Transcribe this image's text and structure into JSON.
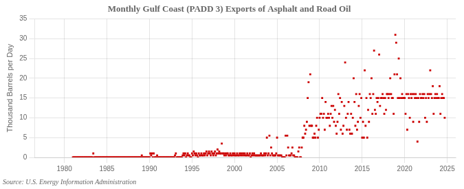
{
  "chart_data": {
    "type": "scatter",
    "title": "Monthly Gulf Coast (PADD 3) Exports of Asphalt and Road Oil",
    "y_label": "Thousand Barrels per Day",
    "annotations": [
      "Source: U.S. Energy Information Administration"
    ],
    "color": "#cc0000",
    "marker": "square",
    "grid": true,
    "xlim": [
      1976.5,
      2026
    ],
    "ylim": [
      0,
      35
    ],
    "xticks": [
      1980,
      1985,
      1990,
      1995,
      2000,
      2005,
      2010,
      2015,
      2020,
      2025
    ],
    "yticks": [
      0,
      5,
      10,
      15,
      20,
      25,
      30,
      35
    ],
    "x": [
      1981.0,
      1981.1,
      1981.2,
      1981.3,
      1981.4,
      1981.5,
      1981.6,
      1981.7,
      1981.8,
      1981.9,
      1982.0,
      1982.1,
      1982.2,
      1982.3,
      1982.4,
      1982.5,
      1982.6,
      1982.7,
      1982.8,
      1982.9,
      1983.0,
      1983.1,
      1983.2,
      1983.3,
      1983.4,
      1983.5,
      1983.6,
      1983.7,
      1983.8,
      1983.9,
      1984.0,
      1984.1,
      1984.2,
      1984.3,
      1984.4,
      1984.5,
      1984.6,
      1984.7,
      1984.8,
      1984.9,
      1985.0,
      1985.1,
      1985.2,
      1985.3,
      1985.4,
      1985.5,
      1985.6,
      1985.7,
      1985.8,
      1985.9,
      1986.0,
      1986.1,
      1986.2,
      1986.3,
      1986.4,
      1986.5,
      1986.6,
      1986.7,
      1986.8,
      1986.9,
      1987.0,
      1987.1,
      1987.2,
      1987.3,
      1987.4,
      1987.5,
      1987.6,
      1987.7,
      1987.8,
      1987.9,
      1988.0,
      1988.1,
      1988.2,
      1988.3,
      1988.4,
      1988.5,
      1988.6,
      1988.7,
      1988.8,
      1988.9,
      1989.0,
      1989.1,
      1989.2,
      1989.3,
      1989.4,
      1989.5,
      1989.6,
      1989.7,
      1989.8,
      1989.9,
      1990.0,
      1990.1,
      1990.2,
      1990.3,
      1990.4,
      1990.5,
      1990.6,
      1990.7,
      1990.8,
      1990.9,
      1991.0,
      1991.1,
      1991.2,
      1991.3,
      1991.4,
      1991.5,
      1991.6,
      1991.7,
      1991.8,
      1991.9,
      1992.0,
      1992.1,
      1992.2,
      1992.3,
      1992.4,
      1992.5,
      1992.6,
      1992.7,
      1992.8,
      1992.9,
      1993.0,
      1993.1,
      1993.2,
      1993.3,
      1993.4,
      1993.5,
      1993.6,
      1993.7,
      1993.8,
      1993.9,
      1994.0,
      1994.1,
      1994.2,
      1994.3,
      1994.4,
      1994.5,
      1994.6,
      1994.7,
      1994.8,
      1994.9,
      1995.0,
      1995.1,
      1995.2,
      1995.3,
      1995.4,
      1995.5,
      1995.6,
      1995.7,
      1995.8,
      1995.9,
      1996.0,
      1996.1,
      1996.2,
      1996.3,
      1996.4,
      1996.5,
      1996.6,
      1996.7,
      1996.8,
      1996.9,
      1997.0,
      1997.1,
      1997.2,
      1997.3,
      1997.4,
      1997.5,
      1997.6,
      1997.7,
      1997.8,
      1997.9,
      1998.0,
      1998.1,
      1998.2,
      1998.3,
      1998.4,
      1998.5,
      1998.6,
      1998.7,
      1998.8,
      1998.9,
      1999.0,
      1999.1,
      1999.2,
      1999.3,
      1999.4,
      1999.5,
      1999.6,
      1999.7,
      1999.8,
      1999.9,
      2000.0,
      2000.1,
      2000.2,
      2000.3,
      2000.4,
      2000.5,
      2000.6,
      2000.7,
      2000.8,
      2000.9,
      2001.0,
      2001.1,
      2001.2,
      2001.3,
      2001.4,
      2001.5,
      2001.6,
      2001.7,
      2001.8,
      2001.9,
      2002.0,
      2002.1,
      2002.2,
      2002.3,
      2002.4,
      2002.5,
      2002.6,
      2002.7,
      2002.8,
      2002.9,
      2003.0,
      2003.1,
      2003.2,
      2003.3,
      2003.4,
      2003.5,
      2003.6,
      2003.7,
      2003.8,
      2003.9,
      2004.0,
      2004.1,
      2004.2,
      2004.3,
      2004.4,
      2004.5,
      2004.6,
      2004.7,
      2004.8,
      2004.9,
      2005.0,
      2005.1,
      2005.2,
      2005.3,
      2005.4,
      2005.5,
      2005.6,
      2005.7,
      2005.8,
      2005.9,
      2006.0,
      2006.1,
      2006.2,
      2006.3,
      2006.4,
      2006.5,
      2006.6,
      2006.7,
      2006.8,
      2006.9,
      2007.0,
      2007.1,
      2007.2,
      2007.3,
      2007.4,
      2007.5,
      2007.6,
      2007.7,
      2007.8,
      2007.9,
      2008.0,
      2008.1,
      2008.2,
      2008.3,
      2008.4,
      2008.5,
      2008.6,
      2008.7,
      2008.8,
      2008.9,
      2009.0,
      2009.1,
      2009.2,
      2009.3,
      2009.4,
      2009.5,
      2009.6,
      2009.7,
      2009.8,
      2009.9,
      2010.0,
      2010.1,
      2010.2,
      2010.3,
      2010.4,
      2010.5,
      2010.6,
      2010.7,
      2010.8,
      2010.9,
      2011.0,
      2011.1,
      2011.2,
      2011.3,
      2011.4,
      2011.5,
      2011.6,
      2011.7,
      2011.8,
      2011.9,
      2012.0,
      2012.1,
      2012.2,
      2012.3,
      2012.4,
      2012.5,
      2012.6,
      2012.7,
      2012.8,
      2012.9,
      2013.0,
      2013.1,
      2013.2,
      2013.3,
      2013.4,
      2013.5,
      2013.6,
      2013.7,
      2013.8,
      2013.9,
      2014.0,
      2014.1,
      2014.2,
      2014.3,
      2014.4,
      2014.5,
      2014.6,
      2014.7,
      2014.8,
      2014.9,
      2015.0,
      2015.1,
      2015.2,
      2015.3,
      2015.4,
      2015.5,
      2015.6,
      2015.7,
      2015.8,
      2015.9,
      2016.0,
      2016.1,
      2016.2,
      2016.3,
      2016.4,
      2016.5,
      2016.6,
      2016.7,
      2016.8,
      2016.9,
      2017.0,
      2017.1,
      2017.2,
      2017.3,
      2017.4,
      2017.5,
      2017.6,
      2017.7,
      2017.8,
      2017.9,
      2018.0,
      2018.1,
      2018.2,
      2018.3,
      2018.4,
      2018.5,
      2018.6,
      2018.7,
      2018.8,
      2018.9,
      2019.0,
      2019.1,
      2019.2,
      2019.3,
      2019.4,
      2019.5,
      2019.6,
      2019.7,
      2019.8,
      2019.9,
      2020.0,
      2020.1,
      2020.2,
      2020.3,
      2020.4,
      2020.5,
      2020.6,
      2020.7,
      2020.8,
      2020.9,
      2021.0,
      2021.1,
      2021.2,
      2021.3,
      2021.4,
      2021.5,
      2021.6,
      2021.7,
      2021.8,
      2021.9,
      2022.0,
      2022.1,
      2022.2,
      2022.3,
      2022.4,
      2022.5,
      2022.6,
      2022.7,
      2022.8,
      2022.9,
      2023.0,
      2023.1,
      2023.2,
      2023.3,
      2023.4,
      2023.5,
      2023.6,
      2023.7,
      2023.8,
      2023.9,
      2024.0,
      2024.1,
      2024.2,
      2024.3,
      2024.4,
      2024.5,
      2024.6,
      2024.7
    ],
    "values": [
      0.0,
      0.0,
      0.0,
      0.0,
      0.0,
      0.0,
      0.0,
      0.0,
      0.0,
      0.0,
      0.0,
      0.0,
      0.0,
      0.0,
      0.0,
      0.0,
      0.0,
      0.0,
      0.0,
      0.0,
      0.0,
      0.0,
      0.0,
      0.0,
      1.0,
      0.0,
      0.0,
      0.0,
      0.0,
      0.0,
      0.0,
      0.0,
      0.0,
      0.0,
      0.0,
      0.0,
      0.0,
      0.0,
      0.0,
      0.0,
      0.0,
      0.0,
      0.0,
      0.0,
      0.0,
      0.0,
      0.0,
      0.0,
      0.0,
      0.0,
      0.0,
      0.0,
      0.0,
      0.0,
      0.0,
      0.0,
      0.0,
      0.0,
      0.0,
      0.0,
      0.0,
      0.0,
      0.0,
      0.0,
      0.0,
      0.0,
      0.0,
      0.0,
      0.0,
      0.0,
      0.0,
      0.0,
      0.0,
      0.0,
      0.0,
      0.0,
      0.0,
      0.0,
      0.0,
      0.0,
      0.0,
      0.5,
      0.0,
      0.0,
      0.0,
      0.0,
      0.0,
      0.0,
      0.0,
      0.0,
      0.0,
      1.0,
      0.5,
      1.0,
      0.0,
      1.0,
      0.0,
      0.0,
      0.0,
      0.5,
      0.0,
      0.0,
      0.0,
      0.0,
      0.0,
      0.0,
      0.0,
      0.0,
      0.0,
      0.0,
      0.0,
      0.0,
      0.0,
      0.0,
      0.0,
      0.0,
      0.0,
      0.0,
      0.0,
      0.0,
      0.5,
      1.0,
      0.0,
      0.0,
      0.0,
      0.0,
      0.0,
      0.0,
      0.0,
      0.5,
      1.0,
      0.5,
      1.0,
      0.0,
      0.5,
      1.0,
      0.5,
      0.5,
      0.0,
      0.0,
      1.0,
      0.5,
      1.5,
      1.0,
      0.5,
      1.0,
      0.5,
      0.0,
      1.0,
      0.5,
      0.5,
      1.0,
      0.5,
      0.5,
      1.0,
      0.5,
      1.0,
      1.5,
      0.5,
      1.0,
      1.5,
      1.0,
      0.5,
      1.5,
      1.0,
      0.5,
      1.0,
      1.5,
      0.5,
      1.0,
      2.0,
      1.0,
      1.5,
      1.0,
      1.0,
      3.5,
      1.0,
      1.0,
      0.5,
      1.0,
      0.5,
      1.0,
      1.0,
      0.5,
      0.5,
      1.0,
      0.5,
      0.5,
      1.0,
      0.5,
      1.0,
      0.5,
      0.5,
      1.0,
      0.5,
      0.5,
      1.0,
      0.5,
      1.0,
      0.5,
      1.0,
      0.5,
      1.0,
      0.5,
      0.5,
      1.0,
      0.5,
      0.5,
      1.0,
      0.0,
      0.5,
      1.0,
      0.5,
      1.0,
      0.5,
      0.5,
      0.5,
      0.5,
      0.5,
      0.5,
      0.5,
      1.0,
      0.5,
      0.5,
      0.5,
      1.0,
      0.5,
      1.0,
      5.0,
      0.5,
      1.0,
      5.5,
      0.5,
      2.5,
      1.0,
      0.5,
      0.5,
      0.5,
      0.5,
      1.0,
      5.0,
      0.5,
      0.5,
      0.5,
      0.5,
      0.5,
      0.0,
      0.0,
      0.0,
      0.0,
      5.5,
      0.5,
      5.5,
      2.5,
      0.5,
      0.5,
      0.5,
      1.0,
      2.5,
      0.5,
      0.5,
      0.0,
      0.0,
      0.0,
      0.0,
      1.5,
      2.5,
      0.0,
      0.0,
      2.5,
      5.0,
      5.0,
      8.0,
      6.0,
      7.0,
      9.0,
      15.0,
      19.0,
      8.0,
      21.0,
      8.0,
      8.0,
      5.0,
      5.0,
      6.0,
      5.0,
      8.0,
      10.0,
      5.0,
      7.0,
      10.0,
      11.0,
      11.0,
      15.0,
      10.0,
      11.0,
      7.0,
      14.0,
      10.0,
      10.0,
      11.0,
      10.0,
      8.0,
      11.0,
      13.0,
      10.0,
      13.0,
      9.0,
      12.0,
      8.0,
      6.0,
      9.0,
      16.0,
      11.0,
      15.0,
      7.0,
      14.0,
      6.0,
      8.0,
      13.0,
      24.0,
      10.0,
      7.0,
      11.0,
      14.0,
      7.0,
      6.0,
      11.0,
      6.0,
      10.0,
      20.0,
      14.0,
      8.0,
      16.0,
      7.0,
      9.0,
      13.0,
      16.0,
      10.0,
      15.0,
      5.0,
      9.0,
      5.0,
      22.0,
      8.0,
      15.0,
      5.0,
      12.0,
      9.0,
      16.0,
      15.0,
      20.0,
      11.0,
      16.0,
      27.0,
      12.0,
      11.0,
      15.0,
      14.0,
      15.0,
      26.0,
      13.0,
      15.0,
      15.0,
      16.0,
      15.0,
      11.0,
      15.0,
      12.0,
      16.0,
      16.0,
      15.0,
      16.0,
      20.0,
      16.0,
      15.0,
      15.0,
      11.0,
      21.0,
      31.0,
      29.0,
      21.0,
      15.0,
      25.0,
      15.0,
      20.0,
      15.0,
      16.0,
      15.0,
      15.0,
      15.0,
      11.0,
      16.0,
      7.0,
      16.0,
      15.0,
      10.0,
      16.0,
      15.0,
      16.0,
      9.0,
      16.0,
      15.0,
      16.0,
      15.0,
      4.0,
      15.0,
      9.0,
      16.0,
      15.0,
      15.0,
      16.0,
      15.0,
      16.0,
      10.0,
      15.0,
      9.0,
      16.0,
      15.0,
      16.0,
      22.0,
      16.0,
      15.0,
      18.0,
      11.0,
      15.0,
      16.0,
      15.0,
      16.0,
      15.0,
      15.0,
      18.0,
      11.0,
      15.0,
      16.0,
      15.0,
      15.0,
      10.0
    ]
  }
}
